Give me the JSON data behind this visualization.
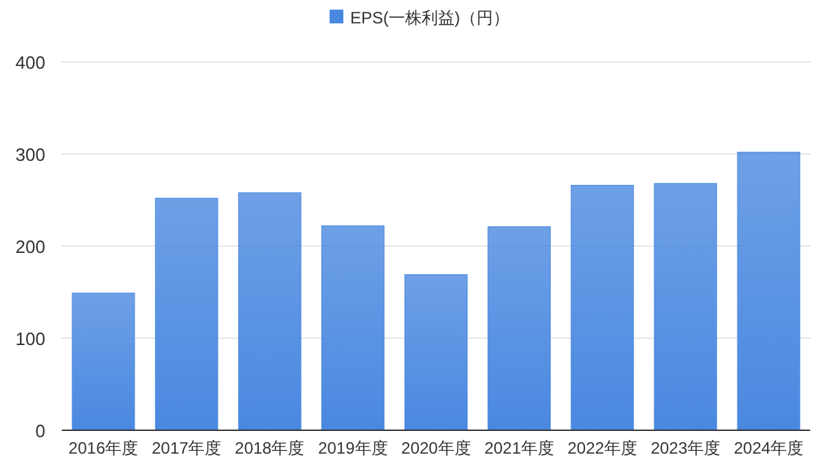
{
  "chart_data": {
    "type": "bar",
    "categories": [
      "2016年度",
      "2017年度",
      "2018年度",
      "2019年度",
      "2020年度",
      "2021年度",
      "2022年度",
      "2023年度",
      "2024年度"
    ],
    "series": [
      {
        "name": "EPS(一株利益)（円）",
        "color": "#4a88e0",
        "values": [
          149,
          252,
          258,
          222,
          169,
          221,
          266,
          268,
          302
        ]
      }
    ],
    "ylim": [
      0,
      400
    ],
    "yticks": [
      0,
      100,
      200,
      300,
      400
    ],
    "grid": "y",
    "legend": "top"
  }
}
